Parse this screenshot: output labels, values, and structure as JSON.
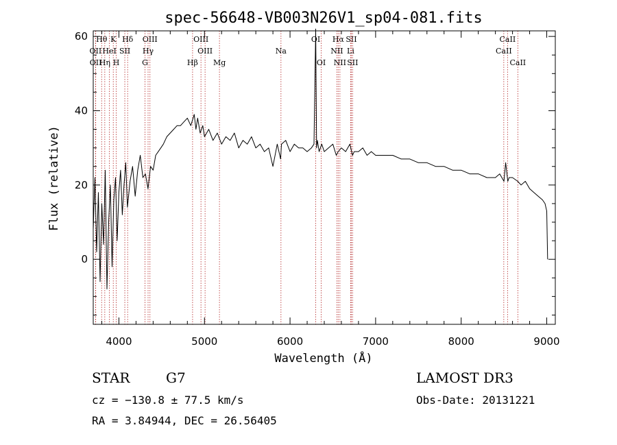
{
  "chart_data": {
    "type": "line",
    "title": "spec-56648-VB003N26V1_sp04-081.fits",
    "xlabel": "Wavelength (Å)",
    "ylabel": "Flux (relative)",
    "xlim": [
      3700,
      9100
    ],
    "ylim": [
      -17.5,
      61.5
    ],
    "x_ticks": [
      4000,
      5000,
      6000,
      7000,
      8000,
      9000
    ],
    "y_ticks": [
      0,
      20,
      40,
      60
    ],
    "grid": false,
    "series": [
      {
        "name": "flux",
        "color": "#000000",
        "x": [
          3700,
          3720,
          3740,
          3760,
          3780,
          3800,
          3820,
          3840,
          3860,
          3880,
          3900,
          3920,
          3940,
          3960,
          3980,
          4000,
          4020,
          4040,
          4060,
          4080,
          4100,
          4130,
          4160,
          4190,
          4220,
          4250,
          4280,
          4310,
          4340,
          4370,
          4400,
          4430,
          4460,
          4490,
          4520,
          4560,
          4600,
          4640,
          4680,
          4720,
          4760,
          4800,
          4840,
          4880,
          4900,
          4920,
          4950,
          4980,
          5000,
          5050,
          5100,
          5150,
          5200,
          5250,
          5300,
          5350,
          5400,
          5450,
          5500,
          5550,
          5600,
          5650,
          5700,
          5750,
          5800,
          5850,
          5890,
          5900,
          5950,
          6000,
          6050,
          6100,
          6150,
          6200,
          6250,
          6280,
          6300,
          6310,
          6320,
          6340,
          6370,
          6400,
          6450,
          6500,
          6540,
          6563,
          6600,
          6650,
          6700,
          6710,
          6730,
          6750,
          6800,
          6850,
          6900,
          6950,
          7000,
          7100,
          7200,
          7300,
          7400,
          7500,
          7600,
          7700,
          7800,
          7900,
          8000,
          8100,
          8200,
          8300,
          8400,
          8450,
          8500,
          8520,
          8545,
          8560,
          8600,
          8660,
          8700,
          8750,
          8800,
          8850,
          8900,
          8950,
          8980,
          9000,
          9010
        ],
        "values": [
          8,
          22,
          2,
          18,
          -6,
          15,
          4,
          24,
          -8,
          10,
          20,
          -2,
          16,
          22,
          5,
          18,
          24,
          12,
          20,
          26,
          14,
          21,
          25,
          17,
          24,
          28,
          22,
          23,
          19,
          25,
          24,
          28,
          29,
          30,
          31,
          33,
          34,
          35,
          36,
          36,
          37,
          38,
          36,
          39,
          35,
          38,
          34,
          36,
          33,
          35,
          32,
          34,
          31,
          33,
          32,
          34,
          30,
          32,
          31,
          33,
          30,
          31,
          29,
          30,
          25,
          31,
          27,
          31,
          32,
          29,
          31,
          30,
          30,
          29,
          30,
          31,
          62,
          30,
          32,
          29,
          31,
          29,
          30,
          31,
          28,
          29,
          30,
          29,
          31,
          30,
          28,
          29,
          29,
          30,
          28,
          29,
          28,
          28,
          28,
          27,
          27,
          26,
          26,
          25,
          25,
          24,
          24,
          23,
          23,
          22,
          22,
          23,
          21,
          26,
          21,
          22,
          22,
          21,
          20,
          21,
          19,
          18,
          17,
          16,
          15,
          13,
          0
        ]
      }
    ],
    "spectral_lines": [
      {
        "label": "Hθ",
        "x": 3798,
        "row": 0
      },
      {
        "label": "K",
        "x": 3934,
        "row": 0
      },
      {
        "label": "Hδ",
        "x": 4102,
        "row": 0
      },
      {
        "label": "OII",
        "x": 3727,
        "row": 1
      },
      {
        "label": "HeI",
        "x": 3889,
        "row": 1
      },
      {
        "label": "SII",
        "x": 4069,
        "row": 1
      },
      {
        "label": "OII",
        "x": 3729,
        "row": 2
      },
      {
        "label": "Hη",
        "x": 3835,
        "row": 2
      },
      {
        "label": "H",
        "x": 3969,
        "row": 2
      },
      {
        "label": "OIII",
        "x": 4363,
        "row": 0
      },
      {
        "label": "Hγ",
        "x": 4341,
        "row": 1
      },
      {
        "label": "G",
        "x": 4305,
        "row": 2
      },
      {
        "label": "OIII",
        "x": 4959,
        "row": 0
      },
      {
        "label": "OIII",
        "x": 5007,
        "row": 1
      },
      {
        "label": "Hβ",
        "x": 4861,
        "row": 2
      },
      {
        "label": "Mg",
        "x": 5175,
        "row": 2
      },
      {
        "label": "Na",
        "x": 5894,
        "row": 1
      },
      {
        "label": "OI",
        "x": 6300,
        "row": 0
      },
      {
        "label": "OI",
        "x": 6364,
        "row": 2
      },
      {
        "label": "Hα",
        "x": 6563,
        "row": 0
      },
      {
        "label": "SII",
        "x": 6716,
        "row": 0
      },
      {
        "label": "NII",
        "x": 6548,
        "row": 1
      },
      {
        "label": "Li",
        "x": 6708,
        "row": 1
      },
      {
        "label": "NII",
        "x": 6583,
        "row": 2
      },
      {
        "label": "SII",
        "x": 6731,
        "row": 2
      },
      {
        "label": "CaII",
        "x": 8542,
        "row": 0
      },
      {
        "label": "CaII",
        "x": 8498,
        "row": 1
      },
      {
        "label": "CaII",
        "x": 8662,
        "row": 2
      }
    ]
  },
  "info": {
    "object_class": "STAR",
    "subclass": "G7",
    "survey": "LAMOST DR3",
    "redshift_line": "cz = −130.8 ± 77.5 km/s",
    "obs_date": "Obs-Date: 20131221",
    "coords": "RA =   3.84944, DEC =  26.56405"
  },
  "colors": {
    "line_marker": "#b22222",
    "spectrum": "#000000",
    "axis": "#000000"
  }
}
